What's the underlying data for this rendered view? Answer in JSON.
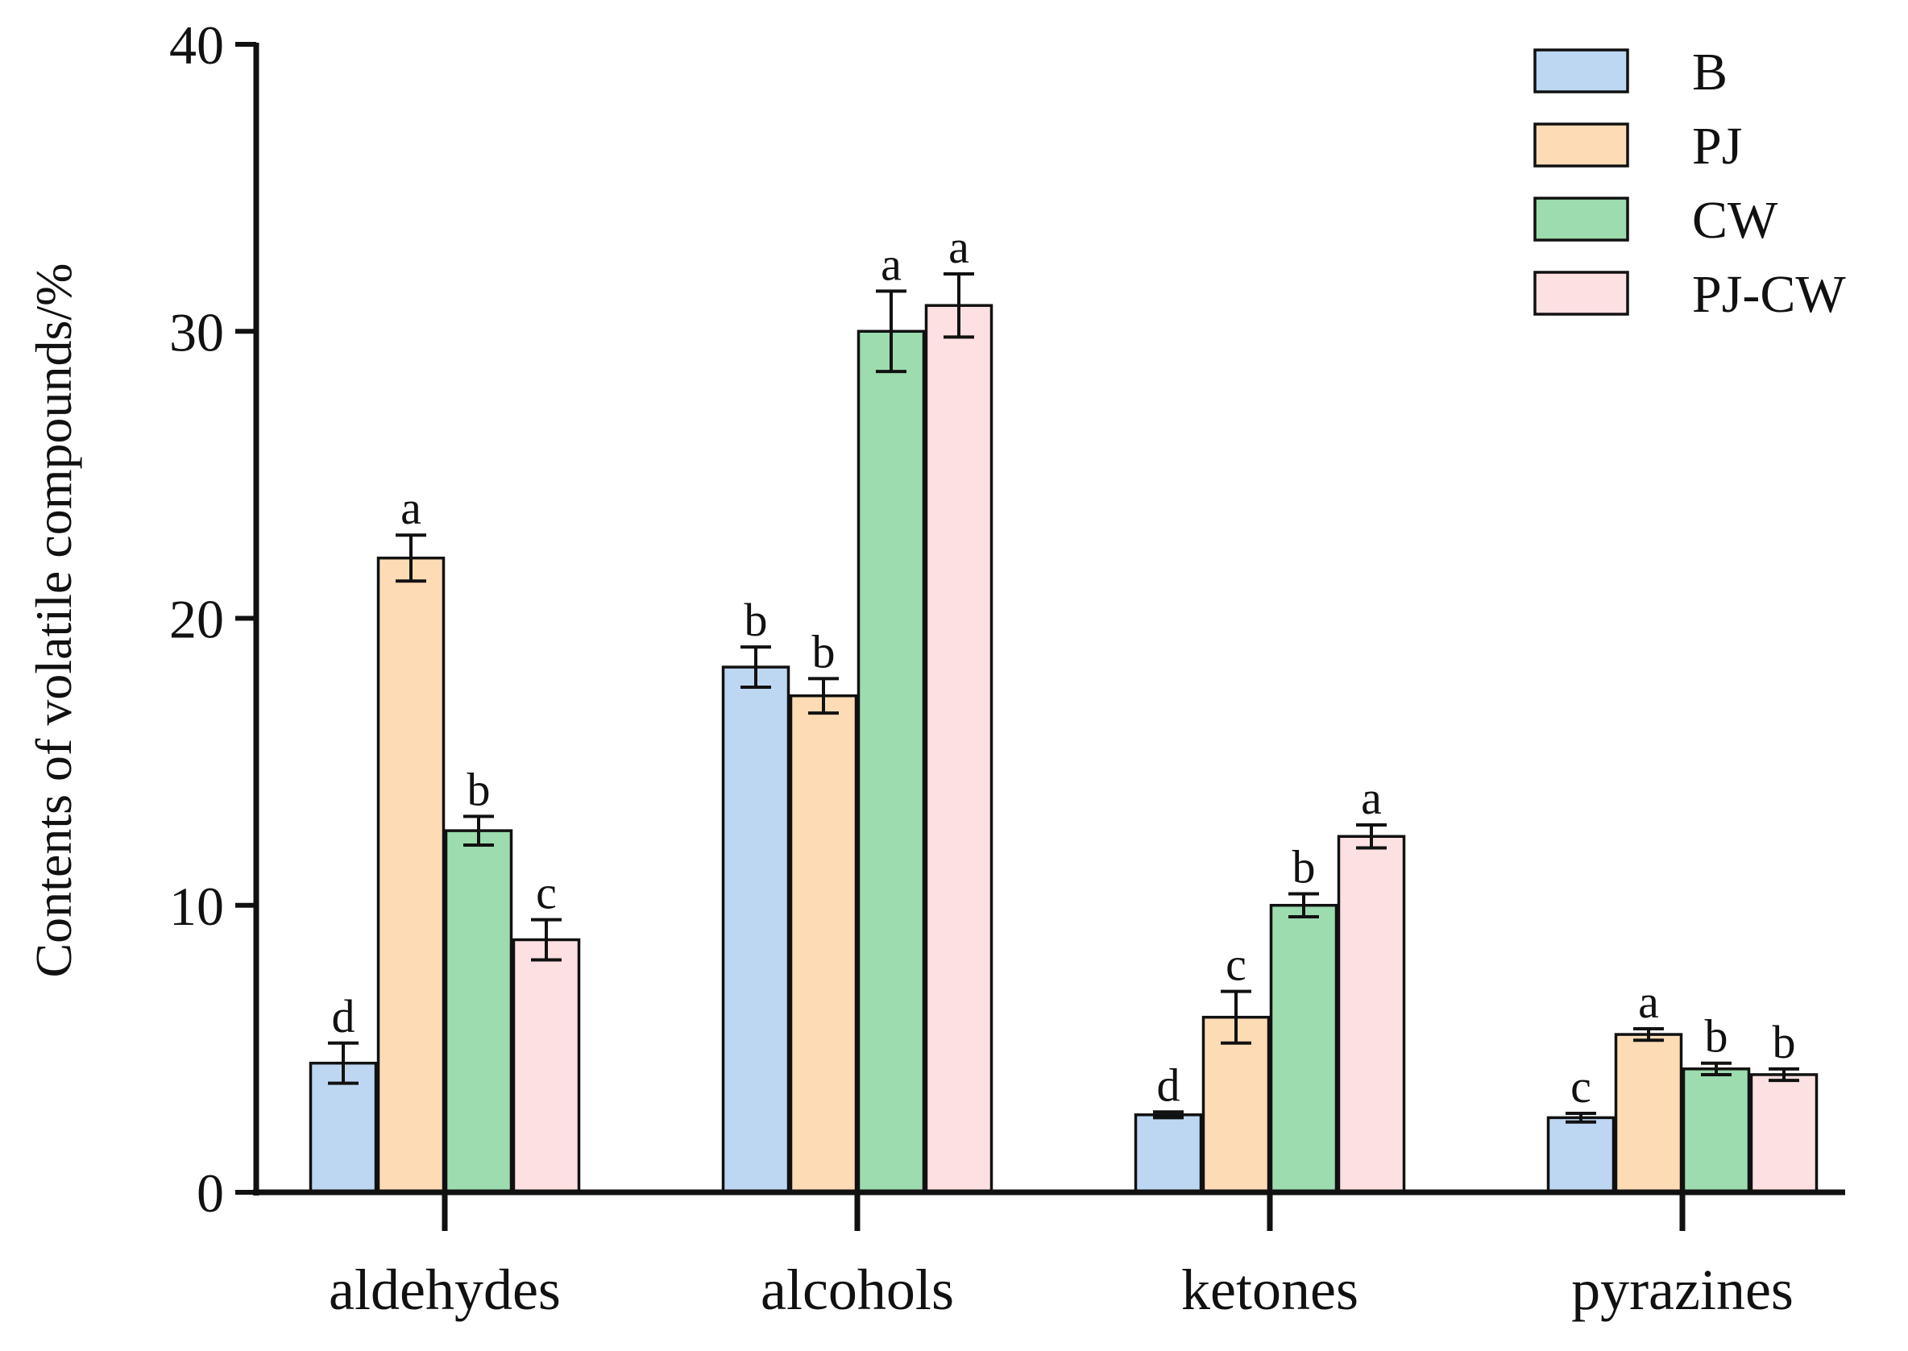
{
  "chart_data": {
    "type": "bar",
    "title": "",
    "xlabel": "",
    "ylabel": "Contents of volatile compounds/%",
    "ylim": [
      0,
      40
    ],
    "yticks": [
      0,
      10,
      20,
      30,
      40
    ],
    "grid": false,
    "legend_position": "top-right",
    "categories": [
      "aldehydes",
      "alcohols",
      "ketones",
      "pyrazines"
    ],
    "series": [
      {
        "name": "B",
        "color": "#bdd7f3",
        "values": [
          4.5,
          18.3,
          2.7,
          2.6
        ],
        "errors": [
          0.7,
          0.7,
          0.1,
          0.15
        ],
        "labels": [
          "d",
          "b",
          "d",
          "c"
        ]
      },
      {
        "name": "PJ",
        "color": "#fddcb5",
        "values": [
          22.1,
          17.3,
          6.1,
          5.5
        ],
        "errors": [
          0.8,
          0.6,
          0.9,
          0.2
        ],
        "labels": [
          "a",
          "b",
          "c",
          "a"
        ]
      },
      {
        "name": "CW",
        "color": "#9cdcae",
        "values": [
          12.6,
          30.0,
          10.0,
          4.3
        ],
        "errors": [
          0.5,
          1.4,
          0.4,
          0.2
        ],
        "labels": [
          "b",
          "a",
          "b",
          "b"
        ]
      },
      {
        "name": "PJ-CW",
        "color": "#fde0e2",
        "values": [
          8.8,
          30.9,
          12.4,
          4.1
        ],
        "errors": [
          0.7,
          1.1,
          0.4,
          0.2
        ],
        "labels": [
          "c",
          "a",
          "a",
          "b"
        ]
      }
    ]
  }
}
